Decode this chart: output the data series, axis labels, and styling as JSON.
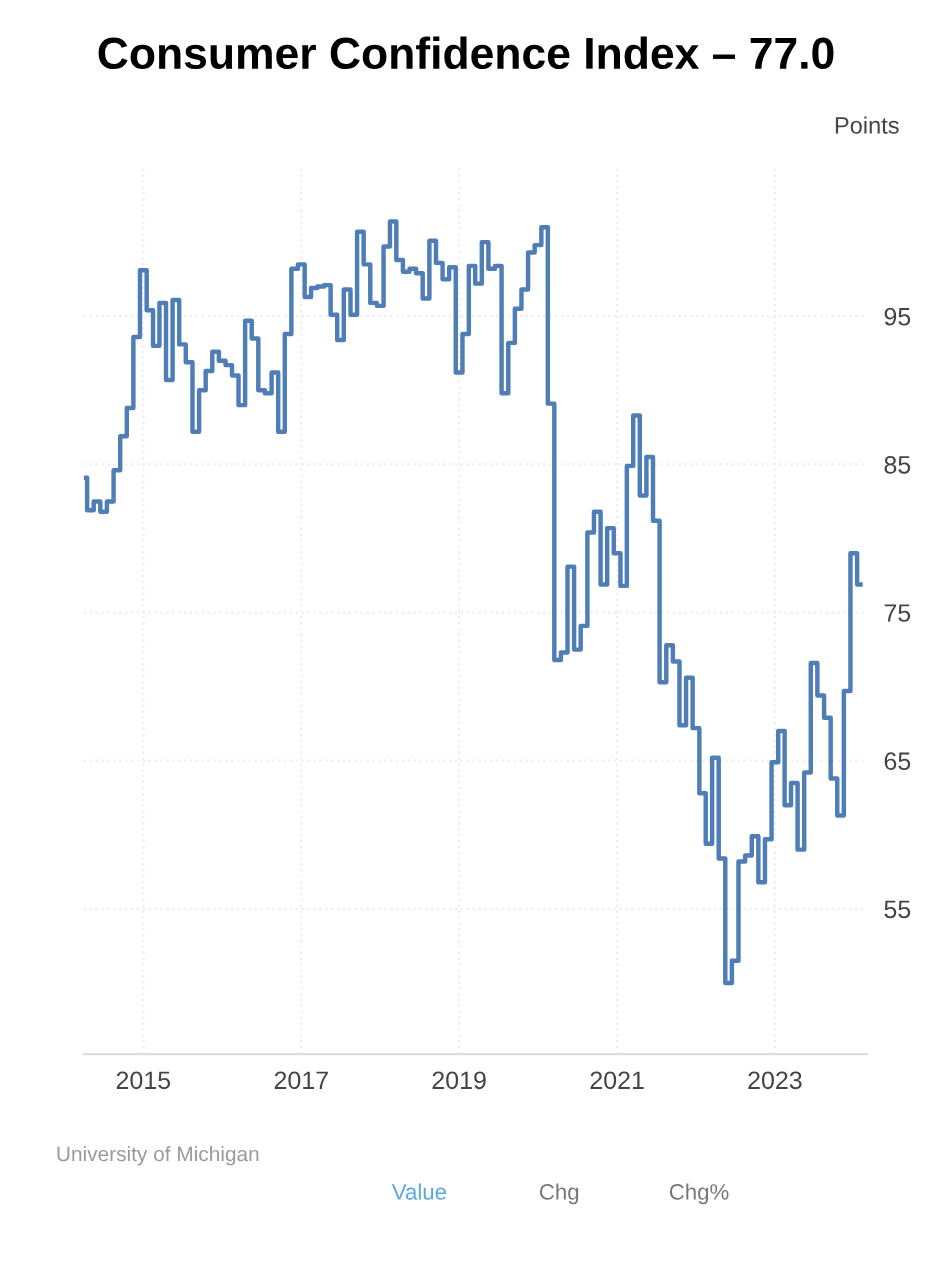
{
  "chart_data": {
    "type": "step",
    "title": "Consumer Confidence Index – 77.0",
    "ylabel": "Points",
    "annotations": [
      "University of Michigan",
      "Value",
      "Chg",
      "Chg%"
    ],
    "x": [
      "2014-04",
      "2014-05",
      "2014-06",
      "2014-07",
      "2014-08",
      "2014-09",
      "2014-10",
      "2014-11",
      "2014-12",
      "2015-01",
      "2015-02",
      "2015-03",
      "2015-04",
      "2015-05",
      "2015-06",
      "2015-07",
      "2015-08",
      "2015-09",
      "2015-10",
      "2015-11",
      "2015-12",
      "2016-01",
      "2016-02",
      "2016-03",
      "2016-04",
      "2016-05",
      "2016-06",
      "2016-07",
      "2016-08",
      "2016-09",
      "2016-10",
      "2016-11",
      "2016-12",
      "2017-01",
      "2017-02",
      "2017-03",
      "2017-04",
      "2017-05",
      "2017-06",
      "2017-07",
      "2017-08",
      "2017-09",
      "2017-10",
      "2017-11",
      "2017-12",
      "2018-01",
      "2018-02",
      "2018-03",
      "2018-04",
      "2018-05",
      "2018-06",
      "2018-07",
      "2018-08",
      "2018-09",
      "2018-10",
      "2018-11",
      "2018-12",
      "2019-01",
      "2019-02",
      "2019-03",
      "2019-04",
      "2019-05",
      "2019-06",
      "2019-07",
      "2019-08",
      "2019-09",
      "2019-10",
      "2019-11",
      "2019-12",
      "2020-01",
      "2020-02",
      "2020-03",
      "2020-04",
      "2020-05",
      "2020-06",
      "2020-07",
      "2020-08",
      "2020-09",
      "2020-10",
      "2020-11",
      "2020-12",
      "2021-01",
      "2021-02",
      "2021-03",
      "2021-04",
      "2021-05",
      "2021-06",
      "2021-07",
      "2021-08",
      "2021-09",
      "2021-10",
      "2021-11",
      "2021-12",
      "2022-01",
      "2022-02",
      "2022-03",
      "2022-04",
      "2022-05",
      "2022-06",
      "2022-07",
      "2022-08",
      "2022-09",
      "2022-10",
      "2022-11",
      "2022-12",
      "2023-01",
      "2023-02",
      "2023-03",
      "2023-04",
      "2023-05",
      "2023-06",
      "2023-07",
      "2023-08",
      "2023-09",
      "2023-10",
      "2023-11",
      "2023-12",
      "2024-01",
      "2024-02"
    ],
    "series": [
      {
        "color": "#4f7db5",
        "values": [
          84.1,
          81.9,
          82.5,
          81.8,
          82.5,
          84.6,
          86.9,
          88.8,
          93.6,
          98.1,
          95.4,
          93.0,
          95.9,
          90.7,
          96.1,
          93.1,
          91.9,
          87.2,
          90.0,
          91.3,
          92.6,
          92.0,
          91.7,
          91.0,
          89.0,
          94.7,
          93.5,
          90.0,
          89.8,
          91.2,
          87.2,
          93.8,
          98.2,
          98.5,
          96.3,
          96.9,
          97.0,
          97.1,
          95.1,
          93.4,
          96.8,
          95.1,
          100.7,
          98.5,
          95.9,
          95.7,
          99.7,
          101.4,
          98.8,
          98.0,
          98.2,
          97.9,
          96.2,
          100.1,
          98.6,
          97.5,
          98.3,
          91.2,
          93.8,
          98.4,
          97.2,
          100.0,
          98.2,
          98.4,
          89.8,
          93.2,
          95.5,
          96.8,
          99.3,
          99.8,
          101.0,
          89.1,
          71.8,
          72.3,
          78.1,
          72.5,
          74.1,
          80.4,
          81.8,
          76.9,
          80.7,
          79.0,
          76.8,
          84.9,
          88.3,
          82.9,
          85.5,
          81.2,
          70.3,
          72.8,
          71.7,
          67.4,
          70.6,
          67.2,
          62.8,
          59.4,
          65.2,
          58.4,
          50.0,
          51.5,
          58.2,
          58.6,
          59.9,
          56.8,
          59.7,
          64.9,
          67.0,
          62.0,
          63.5,
          59.0,
          64.2,
          71.6,
          69.4,
          67.9,
          63.8,
          61.3,
          69.7,
          79.0,
          76.9
        ]
      }
    ],
    "xlim": [
      "2014-04",
      "2024-03"
    ],
    "xticks": [
      "2015",
      "2017",
      "2019",
      "2021",
      "2023"
    ],
    "ylim": [
      45.2,
      105.2
    ],
    "yticks": [
      95,
      85,
      75,
      65,
      55
    ],
    "grid": true,
    "line_style": "solid"
  }
}
